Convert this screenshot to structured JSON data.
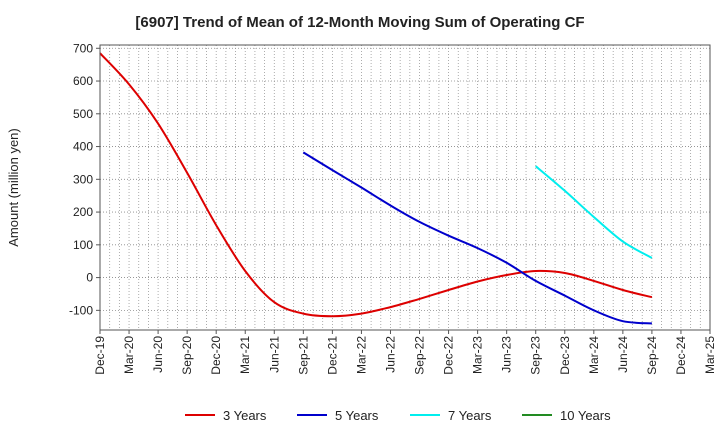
{
  "chart_data": {
    "type": "line",
    "title": "[6907]  Trend of Mean of 12-Month Moving Sum of Operating CF",
    "xlabel": "",
    "ylabel": "Amount (million yen)",
    "ylim": [
      -160,
      710
    ],
    "yticks": [
      700,
      600,
      500,
      400,
      300,
      200,
      100,
      0,
      -100
    ],
    "x_tick_labels": [
      "Dec-19",
      "Mar-20",
      "Jun-20",
      "Sep-20",
      "Dec-20",
      "Mar-21",
      "Jun-21",
      "Sep-21",
      "Dec-21",
      "Mar-22",
      "Jun-22",
      "Sep-22",
      "Dec-22",
      "Mar-23",
      "Jun-23",
      "Sep-23",
      "Dec-23",
      "Mar-24",
      "Jun-24",
      "Sep-24",
      "Dec-24",
      "Mar-25"
    ],
    "grid": true,
    "legend_position": "bottom",
    "series": [
      {
        "name": "3 Years",
        "color": "#dd0000",
        "points": [
          [
            0,
            685
          ],
          [
            1,
            590
          ],
          [
            2,
            470
          ],
          [
            3,
            320
          ],
          [
            4,
            160
          ],
          [
            5,
            20
          ],
          [
            6,
            -75
          ],
          [
            7,
            -110
          ],
          [
            8,
            -118
          ],
          [
            9,
            -110
          ],
          [
            10,
            -90
          ],
          [
            11,
            -65
          ],
          [
            12,
            -38
          ],
          [
            13,
            -12
          ],
          [
            14,
            8
          ],
          [
            15,
            20
          ],
          [
            16,
            14
          ],
          [
            17,
            -10
          ],
          [
            18,
            -38
          ],
          [
            19,
            -60
          ]
        ]
      },
      {
        "name": "5 Years",
        "color": "#0000cc",
        "points": [
          [
            7,
            382
          ],
          [
            8,
            328
          ],
          [
            9,
            275
          ],
          [
            10,
            220
          ],
          [
            11,
            170
          ],
          [
            12,
            128
          ],
          [
            13,
            90
          ],
          [
            14,
            45
          ],
          [
            15,
            -10
          ],
          [
            16,
            -55
          ],
          [
            17,
            -100
          ],
          [
            18,
            -133
          ],
          [
            19,
            -140
          ]
        ]
      },
      {
        "name": "7 Years",
        "color": "#00eeee",
        "points": [
          [
            15,
            340
          ],
          [
            16,
            265
          ],
          [
            17,
            185
          ],
          [
            18,
            110
          ],
          [
            19,
            60
          ]
        ]
      },
      {
        "name": "10 Years",
        "color": "#228b22",
        "points": []
      }
    ]
  }
}
